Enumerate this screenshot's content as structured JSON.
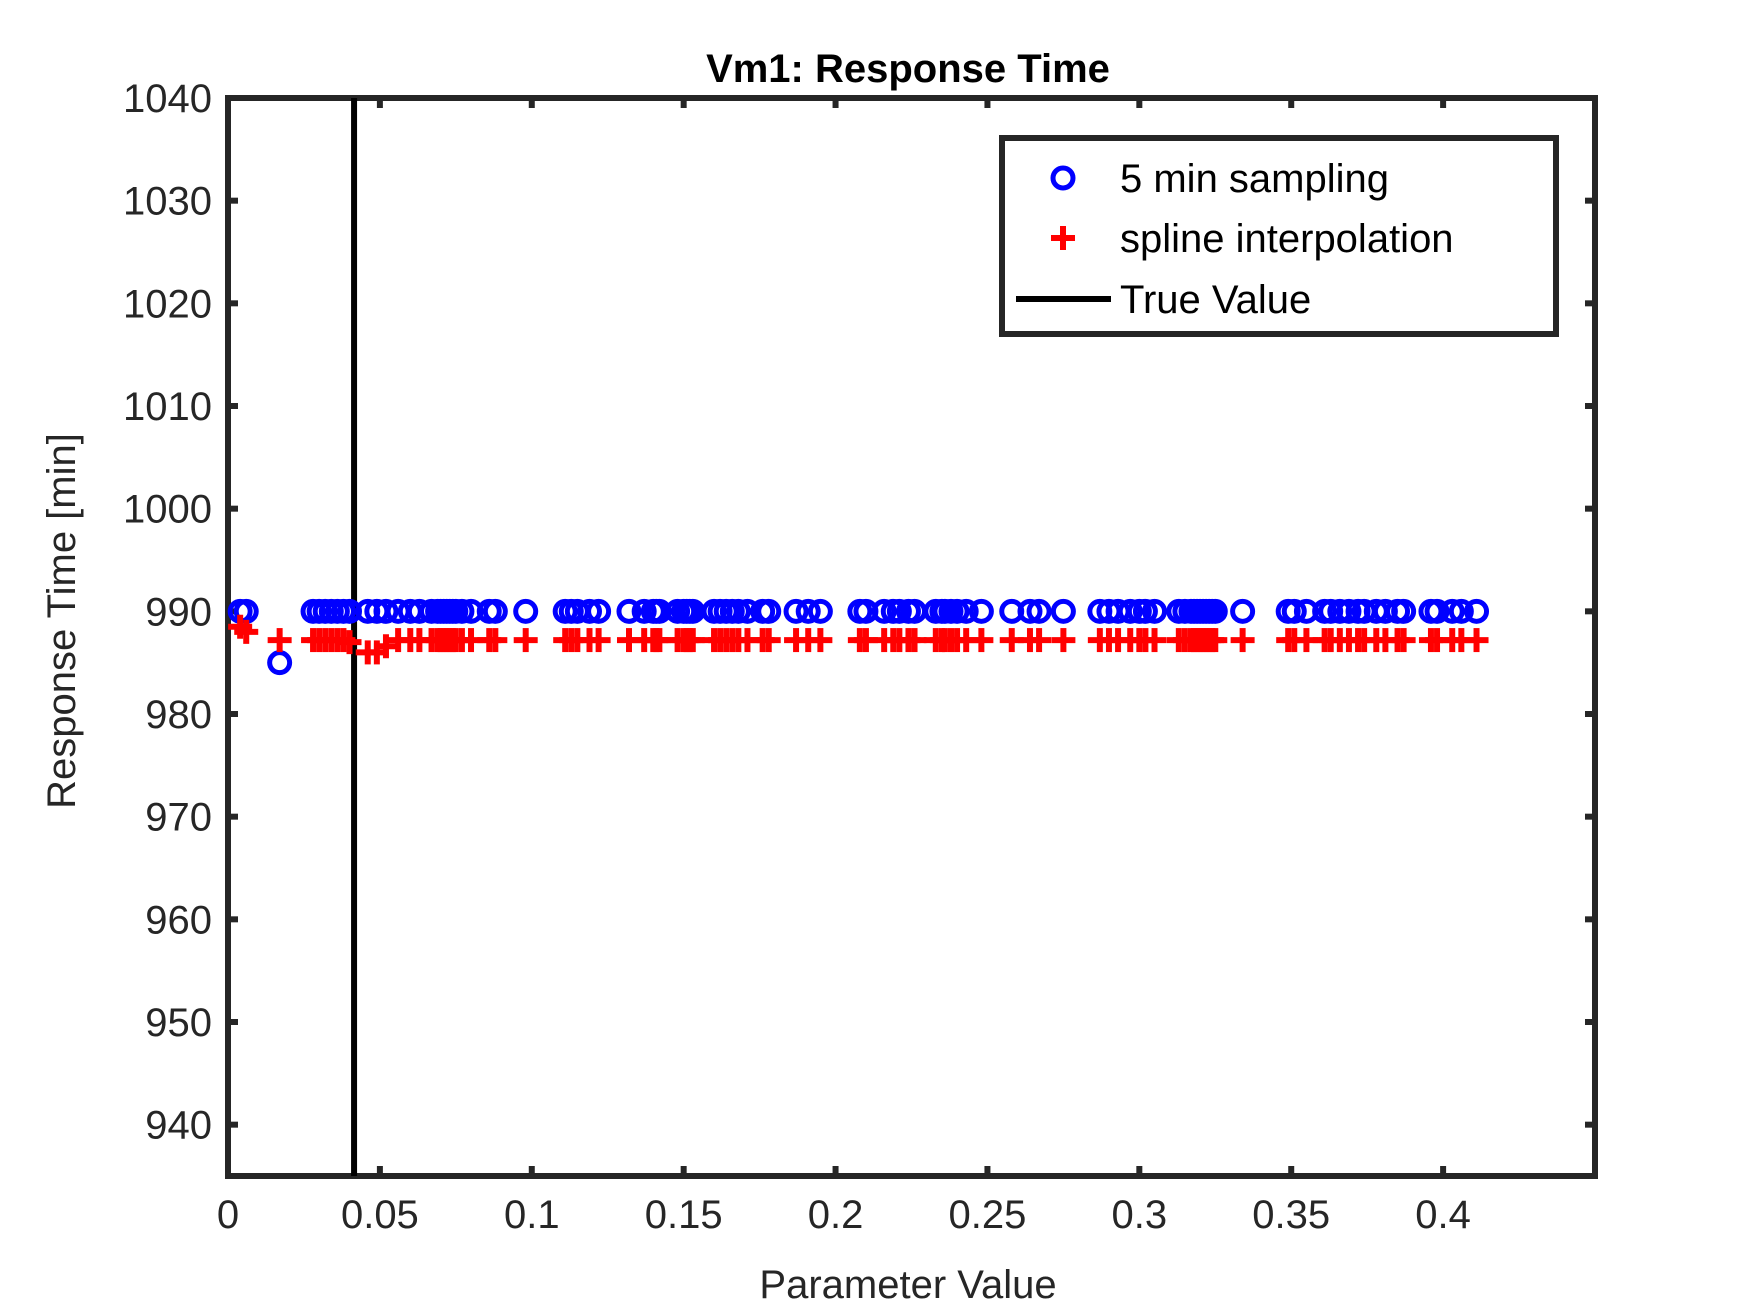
{
  "chart_data": {
    "type": "scatter",
    "title": "Vm1: Response Time",
    "xlabel": "Parameter Value",
    "ylabel": "Response Time [min]",
    "xlim": [
      0,
      0.45
    ],
    "ylim": [
      935,
      1040
    ],
    "xticks": [
      0,
      0.05,
      0.1,
      0.15,
      0.2,
      0.25,
      0.3,
      0.35,
      0.4
    ],
    "xtick_labels": [
      "0",
      "0.05",
      "0.1",
      "0.15",
      "0.2",
      "0.25",
      "0.3",
      "0.35",
      "0.4"
    ],
    "yticks": [
      940,
      950,
      960,
      970,
      980,
      990,
      1000,
      1010,
      1020,
      1030,
      1040
    ],
    "ytick_labels": [
      "940",
      "950",
      "960",
      "970",
      "980",
      "990",
      "1000",
      "1010",
      "1020",
      "1030",
      "1040"
    ],
    "grid": false,
    "legend_position": "top-right",
    "true_value": 0.0415,
    "series": [
      {
        "name": "5 min sampling",
        "marker": "circle",
        "color": "#0000ff",
        "x": [
          0.004,
          0.006,
          0.017,
          0.028,
          0.03,
          0.032,
          0.034,
          0.036,
          0.038,
          0.04,
          0.046,
          0.049,
          0.052,
          0.056,
          0.06,
          0.063,
          0.067,
          0.069,
          0.07,
          0.071,
          0.072,
          0.073,
          0.074,
          0.075,
          0.077,
          0.08,
          0.086,
          0.088,
          0.098,
          0.111,
          0.113,
          0.115,
          0.119,
          0.122,
          0.132,
          0.137,
          0.14,
          0.141,
          0.142,
          0.148,
          0.15,
          0.151,
          0.152,
          0.153,
          0.16,
          0.162,
          0.164,
          0.166,
          0.168,
          0.171,
          0.176,
          0.178,
          0.187,
          0.191,
          0.195,
          0.208,
          0.21,
          0.216,
          0.219,
          0.221,
          0.224,
          0.226,
          0.233,
          0.235,
          0.236,
          0.238,
          0.24,
          0.243,
          0.248,
          0.258,
          0.264,
          0.267,
          0.275,
          0.287,
          0.29,
          0.293,
          0.297,
          0.3,
          0.302,
          0.305,
          0.313,
          0.315,
          0.317,
          0.318,
          0.319,
          0.32,
          0.321,
          0.322,
          0.323,
          0.324,
          0.325,
          0.334,
          0.349,
          0.351,
          0.355,
          0.361,
          0.363,
          0.366,
          0.369,
          0.372,
          0.374,
          0.378,
          0.381,
          0.385,
          0.387,
          0.396,
          0.398,
          0.403,
          0.406,
          0.411
        ],
        "y": [
          990,
          990,
          985,
          990,
          990,
          990,
          990,
          990,
          990,
          990,
          990,
          990,
          990,
          990,
          990,
          990,
          990,
          990,
          990,
          990,
          990,
          990,
          990,
          990,
          990,
          990,
          990,
          990,
          990,
          990,
          990,
          990,
          990,
          990,
          990,
          990,
          990,
          990,
          990,
          990,
          990,
          990,
          990,
          990,
          990,
          990,
          990,
          990,
          990,
          990,
          990,
          990,
          990,
          990,
          990,
          990,
          990,
          990,
          990,
          990,
          990,
          990,
          990,
          990,
          990,
          990,
          990,
          990,
          990,
          990,
          990,
          990,
          990,
          990,
          990,
          990,
          990,
          990,
          990,
          990,
          990,
          990,
          990,
          990,
          990,
          990,
          990,
          990,
          990,
          990,
          990,
          990,
          990,
          990,
          990,
          990,
          990,
          990,
          990,
          990,
          990,
          990,
          990,
          990,
          990,
          990,
          990,
          990,
          990,
          990
        ]
      },
      {
        "name": "spline interpolation",
        "marker": "plus",
        "color": "#ff0000",
        "x": [
          0.004,
          0.006,
          0.017,
          0.028,
          0.03,
          0.032,
          0.034,
          0.036,
          0.038,
          0.04,
          0.046,
          0.049,
          0.052,
          0.056,
          0.06,
          0.063,
          0.067,
          0.069,
          0.07,
          0.071,
          0.072,
          0.073,
          0.074,
          0.075,
          0.077,
          0.08,
          0.086,
          0.088,
          0.098,
          0.111,
          0.113,
          0.115,
          0.119,
          0.122,
          0.132,
          0.137,
          0.14,
          0.141,
          0.142,
          0.148,
          0.15,
          0.151,
          0.152,
          0.153,
          0.16,
          0.162,
          0.164,
          0.166,
          0.168,
          0.171,
          0.176,
          0.178,
          0.187,
          0.191,
          0.195,
          0.208,
          0.21,
          0.216,
          0.219,
          0.221,
          0.224,
          0.226,
          0.233,
          0.235,
          0.236,
          0.238,
          0.24,
          0.243,
          0.248,
          0.258,
          0.264,
          0.267,
          0.275,
          0.287,
          0.29,
          0.293,
          0.297,
          0.3,
          0.302,
          0.305,
          0.313,
          0.315,
          0.317,
          0.318,
          0.319,
          0.32,
          0.321,
          0.322,
          0.323,
          0.324,
          0.325,
          0.334,
          0.349,
          0.351,
          0.355,
          0.361,
          0.363,
          0.366,
          0.369,
          0.372,
          0.374,
          0.378,
          0.381,
          0.385,
          0.387,
          0.396,
          0.398,
          0.403,
          0.406,
          0.411
        ],
        "y": [
          988.5,
          988,
          987.2,
          987.2,
          987.2,
          987.2,
          987.2,
          987.2,
          987.2,
          987,
          986,
          986,
          986.6,
          987.2,
          987.2,
          987.2,
          987.2,
          987.2,
          987.2,
          987.2,
          987.2,
          987.2,
          987.2,
          987.2,
          987.2,
          987.2,
          987.2,
          987.2,
          987.2,
          987.2,
          987.2,
          987.2,
          987.2,
          987.2,
          987.2,
          987.2,
          987.2,
          987.2,
          987.2,
          987.2,
          987.2,
          987.2,
          987.2,
          987.2,
          987.2,
          987.2,
          987.2,
          987.2,
          987.2,
          987.2,
          987.2,
          987.2,
          987.2,
          987.2,
          987.2,
          987.2,
          987.2,
          987.2,
          987.2,
          987.2,
          987.2,
          987.2,
          987.2,
          987.2,
          987.2,
          987.2,
          987.2,
          987.2,
          987.2,
          987.2,
          987.2,
          987.2,
          987.2,
          987.2,
          987.2,
          987.2,
          987.2,
          987.2,
          987.2,
          987.2,
          987.2,
          987.2,
          987.2,
          987.2,
          987.2,
          987.2,
          987.2,
          987.2,
          987.2,
          987.2,
          987.2,
          987.2,
          987.2,
          987.2,
          987.2,
          987.2,
          987.2,
          987.2,
          987.2,
          987.2,
          987.2,
          987.2,
          987.2,
          987.2,
          987.2,
          987.2,
          987.2,
          987.2,
          987.2,
          987.2
        ]
      }
    ],
    "legend": [
      {
        "label": "5 min sampling",
        "marker": "circle",
        "color": "#0000ff"
      },
      {
        "label": "spline interpolation",
        "marker": "plus",
        "color": "#ff0000"
      },
      {
        "label": "True Value",
        "marker": "line",
        "color": "#000000"
      }
    ]
  }
}
